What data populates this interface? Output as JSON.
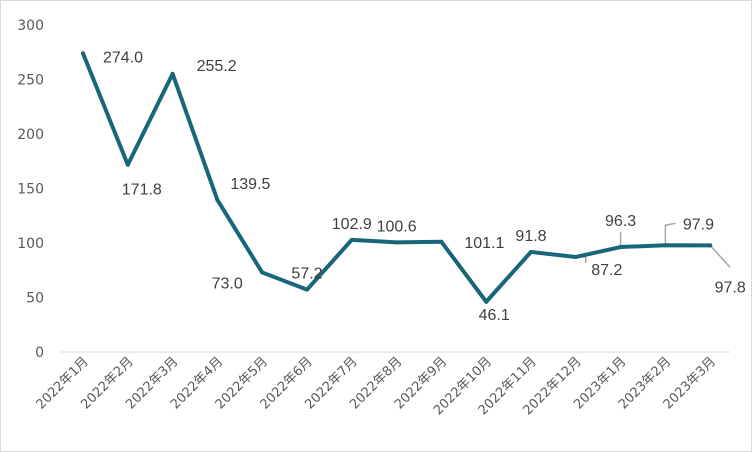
{
  "chart_data": {
    "type": "line",
    "title": "",
    "xlabel": "",
    "ylabel": "",
    "ylim": [
      0,
      300
    ],
    "yticks": [
      0,
      50,
      100,
      150,
      200,
      250,
      300
    ],
    "grid": false,
    "legend": "none",
    "line_color": "#17677a",
    "leader_color": "#a6a6a6",
    "categories": [
      "2022年1月",
      "2022年2月",
      "2022年3月",
      "2022年4月",
      "2022年5月",
      "2022年6月",
      "2022年7月",
      "2022年8月",
      "2022年9月",
      "2022年10月",
      "2022年11月",
      "2022年12月",
      "2023年1月",
      "2023年2月",
      "2023年3月"
    ],
    "series": [
      {
        "values": [
          274.0,
          171.8,
          255.2,
          139.5,
          73.0,
          57.2,
          102.9,
          100.6,
          101.1,
          46.1,
          91.8,
          87.2,
          96.3,
          97.9,
          97.8
        ],
        "labels": [
          "274.0",
          "171.8",
          "255.2",
          "139.5",
          "73.0",
          "57.2",
          "102.9",
          "100.6",
          "101.1",
          "46.1",
          "91.8",
          "87.2",
          "96.3",
          "97.9",
          "97.8"
        ]
      }
    ]
  }
}
